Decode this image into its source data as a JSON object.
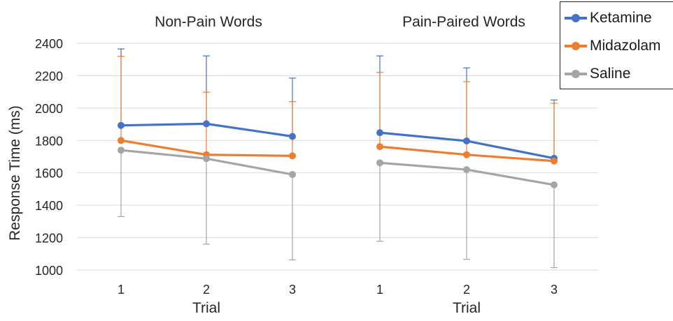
{
  "chart_data": {
    "type": "line",
    "ylabel": "Response Time (ms)",
    "ylim": [
      1000,
      2400
    ],
    "yticks": [
      1000,
      1200,
      1400,
      1600,
      1800,
      2000,
      2200,
      2400
    ],
    "grid": true,
    "legend_position": "top-right",
    "colors": {
      "Ketamine": "#4472c4",
      "Midazolam": "#ed7d31",
      "Saline": "#a5a5a5"
    },
    "panels": [
      {
        "title": "Non-Pain Words",
        "xlabel": "Trial",
        "x": [
          1,
          2,
          3
        ],
        "series": [
          {
            "name": "Ketamine",
            "values": [
              1893,
              1903,
              1825
            ],
            "error_upper": [
              2365,
              2322,
              2185
            ]
          },
          {
            "name": "Midazolam",
            "values": [
              1800,
              1712,
              1705
            ],
            "error_upper": [
              2320,
              2098,
              2040
            ]
          },
          {
            "name": "Saline",
            "values": [
              1740,
              1688,
              1590
            ],
            "error_lower": [
              1330,
              1160,
              1063
            ]
          }
        ]
      },
      {
        "title": "Pain-Paired Words",
        "xlabel": "Trial",
        "x": [
          1,
          2,
          3
        ],
        "series": [
          {
            "name": "Ketamine",
            "values": [
              1848,
              1797,
              1690
            ],
            "error_upper": [
              2322,
              2248,
              2050
            ]
          },
          {
            "name": "Midazolam",
            "values": [
              1762,
              1712,
              1673
            ],
            "error_upper": [
              2220,
              2163,
              2030
            ]
          },
          {
            "name": "Saline",
            "values": [
              1662,
              1620,
              1526
            ],
            "error_lower": [
              1178,
              1066,
              1015
            ]
          }
        ]
      }
    ]
  },
  "legend": [
    {
      "name": "Ketamine",
      "color": "#4472c4"
    },
    {
      "name": "Midazolam",
      "color": "#ed7d31"
    },
    {
      "name": "Saline",
      "color": "#a5a5a5"
    }
  ]
}
